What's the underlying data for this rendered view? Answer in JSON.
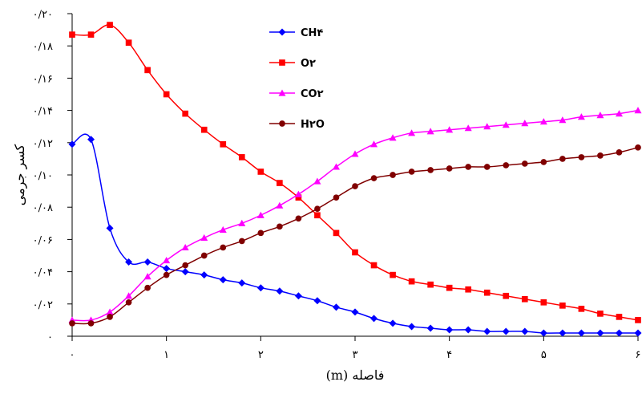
{
  "chart_data": {
    "type": "line",
    "xlabel": "فاصله (m)",
    "ylabel": "کسر جرمی",
    "xlim": [
      0,
      6
    ],
    "ylim": [
      0,
      0.2
    ],
    "x_ticks": [
      {
        "value": 0,
        "label": "۰"
      },
      {
        "value": 1,
        "label": "۱"
      },
      {
        "value": 2,
        "label": "۲"
      },
      {
        "value": 3,
        "label": "۳"
      },
      {
        "value": 4,
        "label": "۴"
      },
      {
        "value": 5,
        "label": "۵"
      },
      {
        "value": 6,
        "label": "۶"
      }
    ],
    "y_ticks": [
      {
        "value": 0,
        "label": "۰"
      },
      {
        "value": 0.02,
        "label": "۰/۰۲"
      },
      {
        "value": 0.04,
        "label": "۰/۰۴"
      },
      {
        "value": 0.06,
        "label": "۰/۰۶"
      },
      {
        "value": 0.08,
        "label": "۰/۰۸"
      },
      {
        "value": 0.1,
        "label": "۰/۱۰"
      },
      {
        "value": 0.12,
        "label": "۰/۱۲"
      },
      {
        "value": 0.14,
        "label": "۰/۱۴"
      },
      {
        "value": 0.16,
        "label": "۰/۱۶"
      },
      {
        "value": 0.18,
        "label": "۰/۱۸"
      },
      {
        "value": 0.2,
        "label": "۰/۲۰"
      }
    ],
    "grid": false,
    "legend": "top-center",
    "x": [
      0,
      0.2,
      0.4,
      0.6,
      0.8,
      1.0,
      1.2,
      1.4,
      1.6,
      1.8,
      2.0,
      2.2,
      2.4,
      2.6,
      2.8,
      3.0,
      3.2,
      3.4,
      3.6,
      3.8,
      4.0,
      4.2,
      4.4,
      4.6,
      4.8,
      5.0,
      5.2,
      5.4,
      5.6,
      5.8,
      6.0
    ],
    "series": [
      {
        "name": "CH۴",
        "color": "#0000ff",
        "marker": "diamond",
        "values": [
          0.119,
          0.122,
          0.067,
          0.046,
          0.046,
          0.042,
          0.04,
          0.038,
          0.035,
          0.033,
          0.03,
          0.028,
          0.025,
          0.022,
          0.018,
          0.015,
          0.011,
          0.008,
          0.006,
          0.005,
          0.004,
          0.004,
          0.003,
          0.003,
          0.003,
          0.002,
          0.002,
          0.002,
          0.002,
          0.002,
          0.002
        ]
      },
      {
        "name": "O۲",
        "color": "#ff0000",
        "marker": "square",
        "values": [
          0.187,
          0.187,
          0.193,
          0.182,
          0.165,
          0.15,
          0.138,
          0.128,
          0.119,
          0.111,
          0.102,
          0.095,
          0.086,
          0.075,
          0.064,
          0.052,
          0.044,
          0.038,
          0.034,
          0.032,
          0.03,
          0.029,
          0.027,
          0.025,
          0.023,
          0.021,
          0.019,
          0.017,
          0.014,
          0.012,
          0.01
        ]
      },
      {
        "name": "CO۲",
        "color": "#ff00ff",
        "marker": "triangle",
        "values": [
          0.01,
          0.01,
          0.015,
          0.025,
          0.037,
          0.047,
          0.055,
          0.061,
          0.066,
          0.07,
          0.075,
          0.081,
          0.088,
          0.096,
          0.105,
          0.113,
          0.119,
          0.123,
          0.126,
          0.127,
          0.128,
          0.129,
          0.13,
          0.131,
          0.132,
          0.133,
          0.134,
          0.136,
          0.137,
          0.138,
          0.14
        ]
      },
      {
        "name": "H۲O",
        "color": "#800000",
        "marker": "circle",
        "values": [
          0.008,
          0.008,
          0.012,
          0.021,
          0.03,
          0.038,
          0.044,
          0.05,
          0.055,
          0.059,
          0.064,
          0.068,
          0.073,
          0.079,
          0.086,
          0.093,
          0.098,
          0.1,
          0.102,
          0.103,
          0.104,
          0.105,
          0.105,
          0.106,
          0.107,
          0.108,
          0.11,
          0.111,
          0.112,
          0.114,
          0.117
        ]
      }
    ]
  }
}
